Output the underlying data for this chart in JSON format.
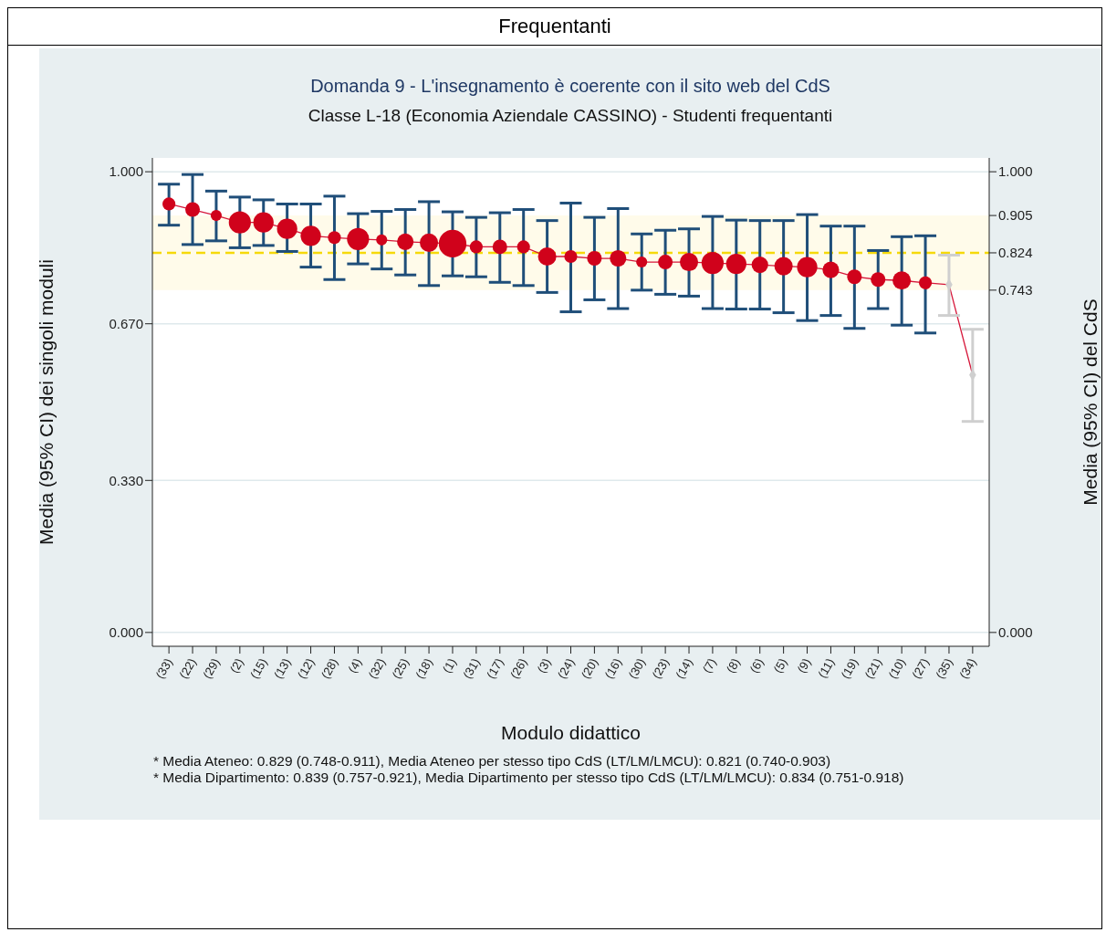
{
  "chart_data": {
    "type": "bubble",
    "title": "Domanda 9 - L'insegnamento è coerente con il sito web del CdS",
    "subtitle": "Classe L-18 (Economia Aziendale CASSINO) - Studenti frequentanti",
    "xlabel": "Modulo didattico",
    "ylabel": "Media (95% CI) dei singoli moduli",
    "y2label": "Media (95% CI) del CdS",
    "annotations": [
      "Frequentanti",
      "* Media Ateneo: 0.829 (0.748-0.911),  Media Ateneo per stesso tipo CdS (LT/LM/LMCU): 0.821 (0.740-0.903)",
      "* Media Dipartimento: 0.839 (0.757-0.921), Media Dipartimento per stesso tipo CdS (LT/LM/LMCU): 0.834 (0.751-0.918)"
    ],
    "categories": [
      "(33)",
      "(22)",
      "(29)",
      "(2)",
      "(15)",
      "(13)",
      "(12)",
      "(28)",
      "(4)",
      "(32)",
      "(25)",
      "(18)",
      "(1)",
      "(31)",
      "(17)",
      "(26)",
      "(3)",
      "(24)",
      "(20)",
      "(16)",
      "(30)",
      "(23)",
      "(14)",
      "(7)",
      "(8)",
      "(6)",
      "(5)",
      "(9)",
      "(11)",
      "(19)",
      "(21)",
      "(10)",
      "(27)",
      "(35)",
      "(34)"
    ],
    "series": [
      {
        "type": "line",
        "color": "#d6173a",
        "marker": "none",
        "values": [
          0.93,
          0.918,
          0.905,
          0.89,
          0.89,
          0.876,
          0.861,
          0.857,
          0.854,
          0.852,
          0.848,
          0.846,
          0.844,
          0.837,
          0.837,
          0.837,
          0.816,
          0.816,
          0.812,
          0.812,
          0.804,
          0.804,
          0.804,
          0.802,
          0.8,
          0.798,
          0.795,
          0.793,
          0.787,
          0.772,
          0.766,
          0.764,
          0.759,
          0.755,
          0.559
        ]
      },
      {
        "color": "#d0021b",
        "values": [
          0.93,
          0.918,
          0.905,
          0.89,
          0.89,
          0.876,
          0.861,
          0.857,
          0.854,
          0.852,
          0.848,
          0.846,
          0.844,
          0.837,
          0.837,
          0.837,
          0.816,
          0.816,
          0.812,
          0.812,
          0.804,
          0.804,
          0.804,
          0.802,
          0.8,
          0.798,
          0.795,
          0.793,
          0.787,
          0.772,
          0.766,
          0.764,
          0.759,
          null,
          null
        ],
        "sizes": [
          0.22,
          0.28,
          0.16,
          0.64,
          0.54,
          0.54,
          0.54,
          0.22,
          0.64,
          0.16,
          0.36,
          0.44,
          1,
          0.22,
          0.28,
          0.22,
          0.44,
          0.22,
          0.28,
          0.36,
          0.16,
          0.28,
          0.44,
          0.64,
          0.54,
          0.36,
          0.44,
          0.54,
          0.36,
          0.28,
          0.28,
          0.44,
          0.22,
          null,
          null
        ],
        "errors": [
          [
            0.884,
            0.973
          ],
          [
            0.842,
            0.994
          ],
          [
            0.85,
            0.958
          ],
          [
            0.835,
            0.945
          ],
          [
            0.84,
            0.939
          ],
          [
            0.827,
            0.93
          ],
          [
            0.793,
            0.93
          ],
          [
            0.766,
            0.947
          ],
          [
            0.8,
            0.909
          ],
          [
            0.789,
            0.914
          ],
          [
            0.776,
            0.918
          ],
          [
            0.753,
            0.935
          ],
          [
            0.774,
            0.913
          ],
          [
            0.772,
            0.901
          ],
          [
            0.76,
            0.911
          ],
          [
            0.753,
            0.918
          ],
          [
            0.738,
            0.894
          ],
          [
            0.696,
            0.932
          ],
          [
            0.722,
            0.901
          ],
          [
            0.703,
            0.92
          ],
          [
            0.743,
            0.865
          ],
          [
            0.734,
            0.873
          ],
          [
            0.73,
            0.876
          ],
          [
            0.703,
            0.903
          ],
          [
            0.702,
            0.895
          ],
          [
            0.702,
            0.894
          ],
          [
            0.694,
            0.894
          ],
          [
            0.677,
            0.907
          ],
          [
            0.688,
            0.882
          ],
          [
            0.66,
            0.882
          ],
          [
            0.703,
            0.829
          ],
          [
            0.667,
            0.859
          ],
          [
            0.65,
            0.861
          ],
          null,
          null
        ]
      },
      {
        "type": "scatter",
        "color": "#cfcfcf",
        "marker": "diamond",
        "values": [
          null,
          null,
          null,
          null,
          null,
          null,
          null,
          null,
          null,
          null,
          null,
          null,
          null,
          null,
          null,
          null,
          null,
          null,
          null,
          null,
          null,
          null,
          null,
          null,
          null,
          null,
          null,
          null,
          null,
          null,
          null,
          null,
          null,
          0.755,
          0.559
        ],
        "errors": [
          null,
          null,
          null,
          null,
          null,
          null,
          null,
          null,
          null,
          null,
          null,
          null,
          null,
          null,
          null,
          null,
          null,
          null,
          null,
          null,
          null,
          null,
          null,
          null,
          null,
          null,
          null,
          null,
          null,
          null,
          null,
          null,
          null,
          [
            0.688,
            0.819
          ],
          [
            0.458,
            0.658
          ]
        ]
      }
    ],
    "ylim": [
      -0.03,
      1.03
    ],
    "yticks": [
      {
        "value": 0,
        "label": "0.000"
      },
      {
        "value": 0.33,
        "label": "0.330"
      },
      {
        "value": 0.67,
        "label": "0.670"
      },
      {
        "value": 1,
        "label": "1.000"
      }
    ],
    "y2lim": [
      -0.03,
      1.03
    ],
    "y2ticks": [
      {
        "value": 0,
        "label": "0.000"
      },
      0.743,
      0.824,
      0.905,
      {
        "value": 1,
        "label": "1.000"
      }
    ],
    "bands": [
      {
        "axis": "y",
        "from": 0.743,
        "to": 0.905,
        "color": "#fffbea"
      }
    ],
    "ref_lines": [
      {
        "axis": "y",
        "value": 0.824,
        "color": "#f5d90a",
        "line_style": "dashed"
      }
    ],
    "grid": "y"
  }
}
